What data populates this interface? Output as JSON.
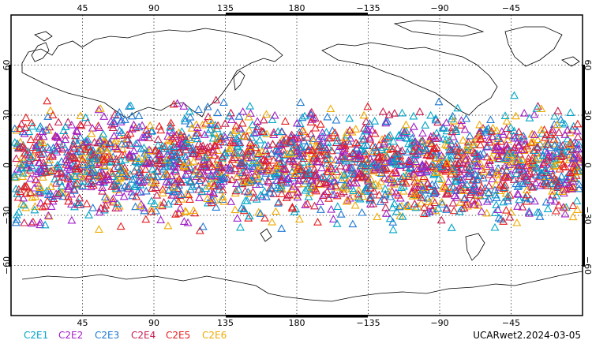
{
  "map": {
    "lon_ticks_top": [
      "45",
      "90",
      "135",
      "180",
      "−135",
      "−90",
      "−45"
    ],
    "lon_ticks_bottom": [
      "45",
      "90",
      "135",
      "180",
      "−135",
      "−90",
      "−45"
    ],
    "lon_tick_values": [
      45,
      90,
      135,
      180,
      225,
      270,
      315
    ],
    "lat_ticks_left": [
      "60",
      "30",
      "0",
      "−30",
      "−60"
    ],
    "lat_ticks_right": [
      "60",
      "30",
      "0",
      "−30",
      "−60"
    ],
    "lat_tick_values": [
      60,
      30,
      0,
      -30,
      -60
    ],
    "lon_range": [
      0,
      360
    ],
    "lat_range": [
      -90,
      90
    ],
    "grid": "dotted",
    "marker": "open-triangle",
    "observation_lat_band": [
      -45,
      45
    ]
  },
  "legend": {
    "items": [
      {
        "label": "C2E1",
        "color": "#00a6c8"
      },
      {
        "label": "C2E2",
        "color": "#a020c8"
      },
      {
        "label": "C2E3",
        "color": "#1e78d2"
      },
      {
        "label": "C2E4",
        "color": "#c81e50"
      },
      {
        "label": "C2E5",
        "color": "#e61e1e"
      },
      {
        "label": "C2E6",
        "color": "#f0aa00"
      }
    ]
  },
  "stamp": "UCARwet2.2024-03-05"
}
